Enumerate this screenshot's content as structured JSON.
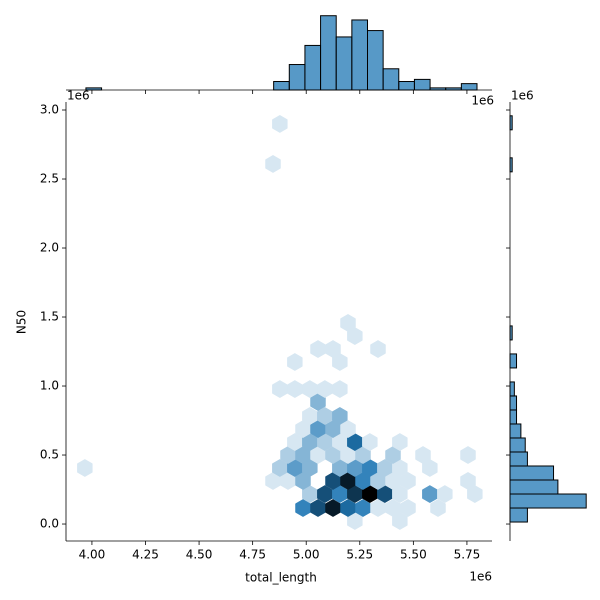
{
  "chart_data": [
    {
      "type": "hexbin",
      "xlabel": "total_length",
      "ylabel": "N50",
      "x_offset": "1e6",
      "y_offset": "1e6",
      "color": "#1f77b4",
      "xlim": [
        3.879,
        5.867
      ],
      "ylim": [
        -0.123,
        3.058
      ],
      "xticks": [
        {
          "value": 4,
          "label": "4.00"
        },
        4.25,
        {
          "value": 4.5,
          "label": "4.50"
        },
        4.75,
        {
          "value": 5,
          "label": "5.00"
        },
        5.25,
        {
          "value": 5.5,
          "label": "5.50"
        },
        5.75
      ],
      "yticks": [
        {
          "value": 0,
          "label": "0.0"
        },
        0.5,
        {
          "value": 1,
          "label": "1.0"
        },
        1.5,
        {
          "value": 2,
          "label": "2.0"
        },
        2.5,
        {
          "value": 3,
          "label": "3.0"
        }
      ],
      "x": [
        5.227,
        5.437,
        4.985,
        5.055,
        5.125,
        5.195,
        5.265,
        5.335,
        5.405,
        5.475,
        5.615,
        5.017,
        5.087,
        5.157,
        5.227,
        5.297,
        5.367,
        5.437,
        5.577,
        5.647,
        5.787,
        4.845,
        4.915,
        4.985,
        5.125,
        5.195,
        5.265,
        5.335,
        5.405,
        5.475,
        5.755,
        3.967,
        4.877,
        4.947,
        5.017,
        5.157,
        5.227,
        5.297,
        5.367,
        5.437,
        5.577,
        4.915,
        4.985,
        5.055,
        5.125,
        5.195,
        5.265,
        5.405,
        5.545,
        5.755,
        4.947,
        5.017,
        5.087,
        5.157,
        5.227,
        5.297,
        5.437,
        4.985,
        5.055,
        5.125,
        5.195,
        5.017,
        5.087,
        5.157,
        5.055,
        4.877,
        4.947,
        5.017,
        5.087,
        5.157,
        4.947,
        5.157,
        5.055,
        5.125,
        5.335,
        5.227,
        5.195,
        4.877,
        4.845
      ],
      "y": [
        0.022,
        0.022,
        0.116,
        0.116,
        0.116,
        0.116,
        0.116,
        0.116,
        0.116,
        0.116,
        0.116,
        0.217,
        0.217,
        0.217,
        0.217,
        0.217,
        0.217,
        0.217,
        0.217,
        0.217,
        0.217,
        0.312,
        0.312,
        0.312,
        0.312,
        0.312,
        0.312,
        0.312,
        0.312,
        0.312,
        0.312,
        0.406,
        0.406,
        0.406,
        0.406,
        0.406,
        0.406,
        0.406,
        0.406,
        0.406,
        0.406,
        0.5,
        0.5,
        0.5,
        0.5,
        0.5,
        0.5,
        0.5,
        0.5,
        0.5,
        0.594,
        0.594,
        0.594,
        0.594,
        0.594,
        0.594,
        0.594,
        0.688,
        0.688,
        0.688,
        0.688,
        0.783,
        0.783,
        0.783,
        0.884,
        0.978,
        0.978,
        0.978,
        0.978,
        0.978,
        1.174,
        1.174,
        1.268,
        1.268,
        1.268,
        1.362,
        1.457,
        2.899,
        2.609
      ],
      "counts": [
        1,
        1,
        5,
        7,
        9,
        6,
        5,
        1,
        1,
        1,
        1,
        2,
        7,
        5,
        8,
        10,
        7,
        1,
        4,
        1,
        1,
        1,
        1,
        3,
        7,
        9,
        5,
        2,
        1,
        1,
        1,
        1,
        2,
        4,
        3,
        3,
        4,
        5,
        2,
        1,
        1,
        2,
        3,
        1,
        2,
        1,
        2,
        2,
        1,
        1,
        1,
        3,
        2,
        1,
        6,
        1,
        1,
        1,
        4,
        3,
        1,
        1,
        2,
        3,
        3,
        1,
        1,
        1,
        1,
        1,
        1,
        1,
        1,
        1,
        1,
        1,
        1,
        1,
        1
      ]
    },
    {
      "type": "histogram",
      "orientation": "vertical",
      "offset": "1e6",
      "color": "#1f77b4",
      "ylim": [
        0,
        36.75
      ],
      "bins": [
        3.972,
        4.045,
        4.118,
        4.191,
        4.264,
        4.337,
        4.41,
        4.483,
        4.556,
        4.629,
        4.702,
        4.775,
        4.848,
        4.921,
        4.994,
        5.067,
        5.14,
        5.213,
        5.286,
        5.359,
        5.432,
        5.505,
        5.578,
        5.651,
        5.724,
        5.797
      ],
      "counts": [
        1,
        0,
        0,
        0,
        0,
        0,
        0,
        0,
        0,
        0,
        0,
        0,
        4,
        12,
        21,
        35,
        25,
        33,
        28,
        10,
        4,
        5,
        1,
        1,
        3
      ]
    },
    {
      "type": "histogram",
      "orientation": "horizontal",
      "offset": "1e6",
      "color": "#1f77b4",
      "xlim": [
        0,
        36.75
      ],
      "bins": [
        0.0145,
        0.116,
        0.2175,
        0.319,
        0.4205,
        0.522,
        0.6235,
        0.725,
        0.8265,
        0.928,
        1.0295,
        1.131,
        1.2325,
        1.334,
        1.4355,
        1.537,
        1.6385,
        1.74,
        1.8415,
        1.943,
        2.0445,
        2.146,
        2.2475,
        2.349,
        2.4505,
        2.552,
        2.6535,
        2.755,
        2.8565,
        2.958
      ],
      "counts": [
        8,
        35,
        22,
        20,
        8,
        7,
        5,
        3,
        3,
        2,
        0,
        3,
        0,
        1,
        0,
        0,
        0,
        0,
        0,
        0,
        0,
        0,
        0,
        0,
        0,
        1,
        0,
        0,
        1
      ]
    }
  ]
}
